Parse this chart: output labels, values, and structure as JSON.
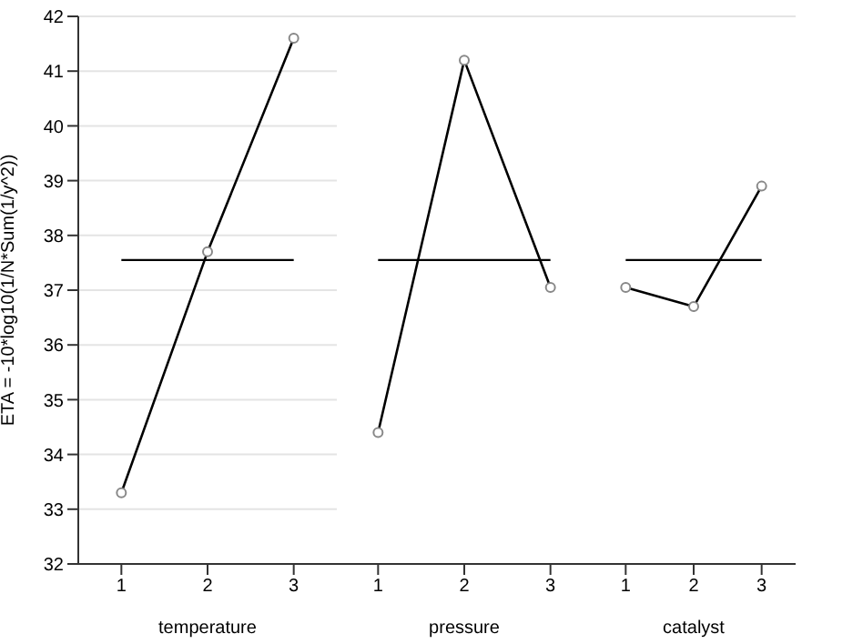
{
  "chart_data": [
    {
      "type": "line",
      "xlabel": "temperature",
      "ylabel": "ETA = -10*log10(1/N*Sum(1/y^2))",
      "categories": [
        "1",
        "2",
        "3"
      ],
      "series": [
        {
          "color": "#000000",
          "values": [
            33.3,
            37.7,
            41.6
          ]
        }
      ],
      "ylim": [
        32,
        42
      ],
      "yticks": [
        32,
        33,
        34,
        35,
        36,
        37,
        38,
        39,
        40,
        41,
        42
      ],
      "grid": "y",
      "marker": "circle",
      "ref_lines": [
        {
          "axis": "y",
          "value": 37.55,
          "color": "#000000"
        }
      ]
    },
    {
      "type": "line",
      "xlabel": "pressure",
      "categories": [
        "1",
        "2",
        "3"
      ],
      "series": [
        {
          "color": "#000000",
          "values": [
            34.4,
            41.2,
            37.05
          ]
        }
      ],
      "ylim": [
        32,
        42
      ],
      "yticks": [
        32,
        33,
        34,
        35,
        36,
        37,
        38,
        39,
        40,
        41,
        42
      ],
      "grid": "y",
      "marker": "circle",
      "tick_labels": "x",
      "ref_lines": [
        {
          "axis": "y",
          "value": 37.55,
          "color": "#000000"
        }
      ]
    },
    {
      "type": "line",
      "xlabel": "catalyst",
      "categories": [
        "1",
        "2",
        "3"
      ],
      "series": [
        {
          "color": "#000000",
          "values": [
            37.05,
            36.7,
            38.9
          ]
        }
      ],
      "ylim": [
        32,
        42
      ],
      "yticks": [
        32,
        33,
        34,
        35,
        36,
        37,
        38,
        39,
        40,
        41,
        42
      ],
      "grid": "y",
      "marker": "circle",
      "tick_labels": "x",
      "ref_lines": [
        {
          "axis": "y",
          "value": 37.55,
          "color": "#000000"
        }
      ]
    }
  ]
}
